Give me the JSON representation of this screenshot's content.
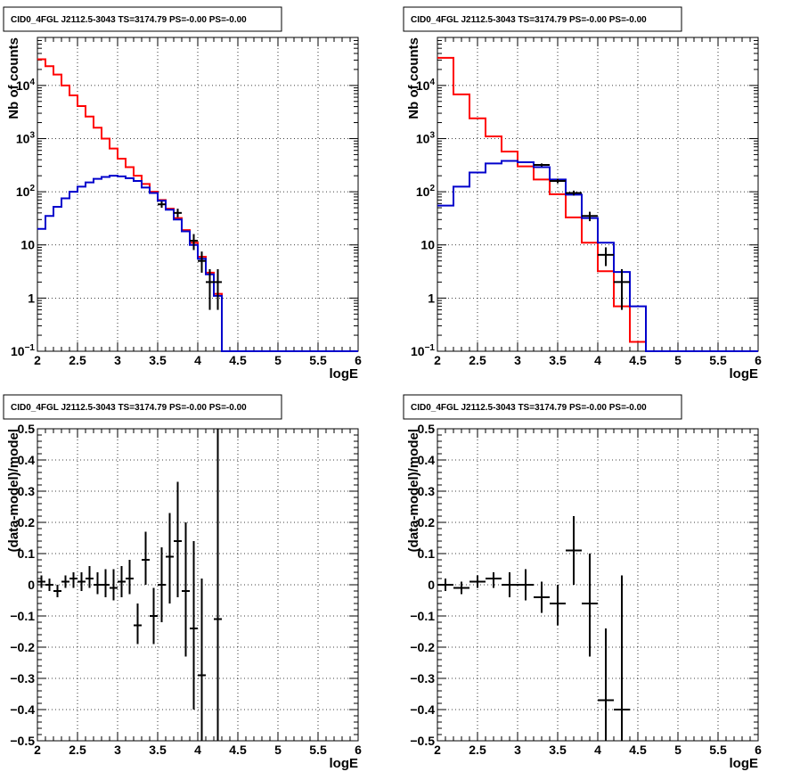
{
  "chart_data": [
    {
      "type": "line",
      "title": "CID0_4FGL J2112.5-3043 TS=3174.79 PS=-0.00 PS=-0.00",
      "xlabel": "logE",
      "ylabel": "Nb of counts",
      "xlim": [
        2,
        6
      ],
      "ylim": [
        0.1,
        80000
      ],
      "yscale": "log",
      "grid": true,
      "x_ticks": [
        "2",
        "2.5",
        "3",
        "3.5",
        "4",
        "4.5",
        "5",
        "5.5",
        "6"
      ],
      "y_ticks": [
        {
          "v": 0.1,
          "m": "10",
          "e": "−1"
        },
        {
          "v": 1,
          "m": "1",
          "e": ""
        },
        {
          "v": 10,
          "m": "10",
          "e": ""
        },
        {
          "v": 100,
          "m": "10",
          "e": "2"
        },
        {
          "v": 1000,
          "m": "10",
          "e": "3"
        },
        {
          "v": 10000,
          "m": "10",
          "e": "4"
        }
      ],
      "bin_width": 0.1,
      "series": [
        {
          "color": "#ff0000",
          "style": "step",
          "x_edges_start": 2.0,
          "values": [
            31000,
            23000,
            16000,
            10000,
            6500,
            4100,
            2600,
            1600,
            1000,
            650,
            420,
            290,
            200,
            140,
            100,
            70,
            48,
            32,
            19,
            11,
            6,
            3,
            1.2,
            0.1,
            0.1,
            0.1,
            0.1,
            0.1,
            0.1,
            0.1,
            0.1,
            0.1,
            0.1,
            0.1,
            0.1,
            0.1,
            0.1,
            0.1,
            0.1,
            0.1
          ]
        },
        {
          "color": "#0000cc",
          "style": "step",
          "x_edges_start": 2.0,
          "values": [
            20,
            35,
            52,
            75,
            100,
            125,
            150,
            175,
            190,
            200,
            195,
            180,
            160,
            120,
            95,
            68,
            46,
            30,
            18,
            10,
            5.5,
            2.8,
            1.1,
            0.1,
            0.1,
            0.1,
            0.1,
            0.1,
            0.1,
            0.1,
            0.1,
            0.1,
            0.1,
            0.1,
            0.1,
            0.1,
            0.1,
            0.1,
            0.1,
            0.1
          ]
        },
        {
          "color": "#000000",
          "style": "errorbar",
          "points": [
            {
              "x": 3.55,
              "y": 58,
              "lo": 50,
              "hi": 66
            },
            {
              "x": 3.75,
              "y": 40,
              "lo": 33,
              "hi": 48
            },
            {
              "x": 3.95,
              "y": 12,
              "lo": 8,
              "hi": 16
            },
            {
              "x": 4.05,
              "y": 5,
              "lo": 3,
              "hi": 7.5
            },
            {
              "x": 4.15,
              "y": 2,
              "lo": 0.6,
              "hi": 3.5
            },
            {
              "x": 4.25,
              "y": 2,
              "lo": 0.6,
              "hi": 3.5
            }
          ]
        }
      ]
    },
    {
      "type": "line",
      "title": "CID0_4FGL J2112.5-3043 TS=3174.79 PS=-0.00 PS=-0.00",
      "xlabel": "logE",
      "ylabel": "Nb of counts",
      "xlim": [
        2,
        6
      ],
      "ylim": [
        0.1,
        80000
      ],
      "yscale": "log",
      "grid": true,
      "x_ticks": [
        "2",
        "2.5",
        "3",
        "3.5",
        "4",
        "4.5",
        "5",
        "5.5",
        "6"
      ],
      "y_ticks": [
        {
          "v": 0.1,
          "m": "10",
          "e": "−1"
        },
        {
          "v": 1,
          "m": "1",
          "e": ""
        },
        {
          "v": 10,
          "m": "10",
          "e": ""
        },
        {
          "v": 100,
          "m": "10",
          "e": "2"
        },
        {
          "v": 1000,
          "m": "10",
          "e": "3"
        },
        {
          "v": 10000,
          "m": "10",
          "e": "4"
        }
      ],
      "bin_width": 0.2,
      "series": [
        {
          "color": "#ff0000",
          "style": "step",
          "x_edges_start": 2.0,
          "values": [
            33000,
            6800,
            2400,
            1100,
            570,
            300,
            170,
            90,
            33,
            11,
            3.2,
            0.7,
            0.15,
            0.1,
            0.1,
            0.1,
            0.1,
            0.1,
            0.1,
            0.1
          ]
        },
        {
          "color": "#0000cc",
          "style": "step",
          "x_edges_start": 2.0,
          "values": [
            55,
            125,
            230,
            340,
            380,
            360,
            290,
            170,
            88,
            32,
            11,
            3.1,
            0.7,
            0.1,
            0.1,
            0.1,
            0.1,
            0.1,
            0.1,
            0.1
          ]
        },
        {
          "color": "#000000",
          "style": "errorbar",
          "points": [
            {
              "x": 3.3,
              "y": 320,
              "lo": 300,
              "hi": 340
            },
            {
              "x": 3.5,
              "y": 160,
              "lo": 145,
              "hi": 175
            },
            {
              "x": 3.7,
              "y": 95,
              "lo": 85,
              "hi": 105
            },
            {
              "x": 3.9,
              "y": 35,
              "lo": 28,
              "hi": 42
            },
            {
              "x": 4.1,
              "y": 6.5,
              "lo": 4,
              "hi": 9
            },
            {
              "x": 4.3,
              "y": 2,
              "lo": 0.6,
              "hi": 3.5
            }
          ]
        }
      ]
    },
    {
      "type": "scatter",
      "title": "CID0_4FGL J2112.5-3043 TS=3174.79 PS=-0.00 PS=-0.00",
      "xlabel": "logE",
      "ylabel": "(data-model)/model",
      "xlim": [
        2,
        6
      ],
      "ylim": [
        -0.5,
        0.5
      ],
      "yscale": "linear",
      "grid": true,
      "x_ticks": [
        "2",
        "2.5",
        "3",
        "3.5",
        "4",
        "4.5",
        "5",
        "5.5",
        "6"
      ],
      "y_ticks": [
        {
          "v": -0.5,
          "m": "−0.5",
          "e": ""
        },
        {
          "v": -0.4,
          "m": "−0.4",
          "e": ""
        },
        {
          "v": -0.3,
          "m": "−0.3",
          "e": ""
        },
        {
          "v": -0.2,
          "m": "−0.2",
          "e": ""
        },
        {
          "v": -0.1,
          "m": "−0.1",
          "e": ""
        },
        {
          "v": 0,
          "m": "0",
          "e": ""
        },
        {
          "v": 0.1,
          "m": "0.1",
          "e": ""
        },
        {
          "v": 0.2,
          "m": "0.2",
          "e": ""
        },
        {
          "v": 0.3,
          "m": "0.3",
          "e": ""
        },
        {
          "v": 0.4,
          "m": "0.4",
          "e": ""
        },
        {
          "v": 0.5,
          "m": "0.5",
          "e": ""
        }
      ],
      "bin_width": 0.1,
      "series": [
        {
          "color": "#000000",
          "style": "errorbar",
          "points": [
            {
              "x": 2.05,
              "y": 0.01,
              "lo": -0.01,
              "hi": 0.03
            },
            {
              "x": 2.15,
              "y": 0.0,
              "lo": -0.02,
              "hi": 0.02
            },
            {
              "x": 2.25,
              "y": -0.02,
              "lo": -0.04,
              "hi": 0.0
            },
            {
              "x": 2.35,
              "y": 0.01,
              "lo": -0.01,
              "hi": 0.03
            },
            {
              "x": 2.45,
              "y": 0.02,
              "lo": -0.01,
              "hi": 0.04
            },
            {
              "x": 2.55,
              "y": 0.01,
              "lo": -0.02,
              "hi": 0.04
            },
            {
              "x": 2.65,
              "y": 0.02,
              "lo": -0.01,
              "hi": 0.06
            },
            {
              "x": 2.75,
              "y": 0.0,
              "lo": -0.03,
              "hi": 0.04
            },
            {
              "x": 2.85,
              "y": 0.0,
              "lo": -0.04,
              "hi": 0.05
            },
            {
              "x": 2.95,
              "y": -0.01,
              "lo": -0.05,
              "hi": 0.05
            },
            {
              "x": 3.05,
              "y": 0.01,
              "lo": -0.04,
              "hi": 0.06
            },
            {
              "x": 3.15,
              "y": 0.02,
              "lo": -0.03,
              "hi": 0.08
            },
            {
              "x": 3.25,
              "y": -0.13,
              "lo": -0.19,
              "hi": -0.06
            },
            {
              "x": 3.35,
              "y": 0.08,
              "lo": 0.0,
              "hi": 0.17
            },
            {
              "x": 3.45,
              "y": -0.1,
              "lo": -0.19,
              "hi": -0.01
            },
            {
              "x": 3.55,
              "y": 0.0,
              "lo": -0.12,
              "hi": 0.12
            },
            {
              "x": 3.65,
              "y": 0.09,
              "lo": -0.06,
              "hi": 0.23
            },
            {
              "x": 3.75,
              "y": 0.14,
              "lo": -0.04,
              "hi": 0.33
            },
            {
              "x": 3.85,
              "y": -0.02,
              "lo": -0.23,
              "hi": 0.2
            },
            {
              "x": 3.95,
              "y": -0.14,
              "lo": -0.4,
              "hi": 0.14
            },
            {
              "x": 4.05,
              "y": -0.29,
              "lo": -0.55,
              "hi": 0.02
            },
            {
              "x": 4.25,
              "y": -0.11,
              "lo": -0.55,
              "hi": 0.55
            }
          ]
        }
      ]
    },
    {
      "type": "scatter",
      "title": "CID0_4FGL J2112.5-3043 TS=3174.79 PS=-0.00 PS=-0.00",
      "xlabel": "logE",
      "ylabel": "(data-model)/model",
      "xlim": [
        2,
        6
      ],
      "ylim": [
        -0.5,
        0.5
      ],
      "yscale": "linear",
      "grid": true,
      "x_ticks": [
        "2",
        "2.5",
        "3",
        "3.5",
        "4",
        "4.5",
        "5",
        "5.5",
        "6"
      ],
      "y_ticks": [
        {
          "v": -0.5,
          "m": "−0.5",
          "e": ""
        },
        {
          "v": -0.4,
          "m": "−0.4",
          "e": ""
        },
        {
          "v": -0.3,
          "m": "−0.3",
          "e": ""
        },
        {
          "v": -0.2,
          "m": "−0.2",
          "e": ""
        },
        {
          "v": -0.1,
          "m": "−0.1",
          "e": ""
        },
        {
          "v": 0,
          "m": "0",
          "e": ""
        },
        {
          "v": 0.1,
          "m": "0.1",
          "e": ""
        },
        {
          "v": 0.2,
          "m": "0.2",
          "e": ""
        },
        {
          "v": 0.3,
          "m": "0.3",
          "e": ""
        },
        {
          "v": 0.4,
          "m": "0.4",
          "e": ""
        },
        {
          "v": 0.5,
          "m": "0.5",
          "e": ""
        }
      ],
      "bin_width": 0.2,
      "series": [
        {
          "color": "#000000",
          "style": "errorbar",
          "points": [
            {
              "x": 2.1,
              "y": 0.0,
              "lo": -0.02,
              "hi": 0.02
            },
            {
              "x": 2.3,
              "y": -0.01,
              "lo": -0.03,
              "hi": 0.01
            },
            {
              "x": 2.5,
              "y": 0.01,
              "lo": -0.01,
              "hi": 0.03
            },
            {
              "x": 2.7,
              "y": 0.02,
              "lo": -0.01,
              "hi": 0.04
            },
            {
              "x": 2.9,
              "y": 0.0,
              "lo": -0.04,
              "hi": 0.04
            },
            {
              "x": 3.1,
              "y": 0.0,
              "lo": -0.05,
              "hi": 0.05
            },
            {
              "x": 3.3,
              "y": -0.04,
              "lo": -0.09,
              "hi": 0.01
            },
            {
              "x": 3.5,
              "y": -0.06,
              "lo": -0.13,
              "hi": 0.0
            },
            {
              "x": 3.7,
              "y": 0.11,
              "lo": 0.0,
              "hi": 0.22
            },
            {
              "x": 3.9,
              "y": -0.06,
              "lo": -0.23,
              "hi": 0.1
            },
            {
              "x": 4.1,
              "y": -0.37,
              "lo": -0.55,
              "hi": -0.14
            },
            {
              "x": 4.3,
              "y": -0.4,
              "lo": -0.55,
              "hi": 0.03
            }
          ]
        }
      ]
    }
  ]
}
